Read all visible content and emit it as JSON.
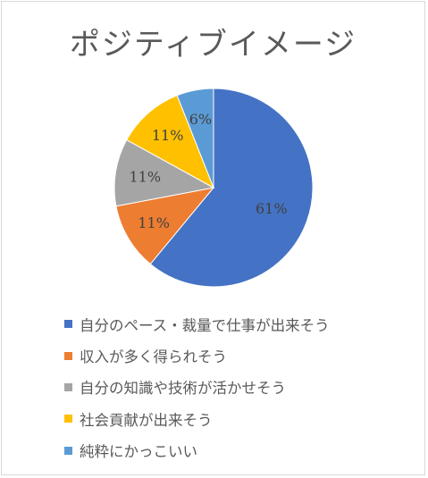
{
  "chart_data": {
    "type": "pie",
    "title": "ポジティブイメージ",
    "slices": [
      {
        "name": "自分のペース・裁量で仕事が出来そう",
        "value": 61,
        "label": "61%",
        "color": "#4472c4"
      },
      {
        "name": "収入が多く得られそう",
        "value": 11,
        "label": "11%",
        "color": "#ed7d31"
      },
      {
        "name": "自分の知識や技術が活かせそう",
        "value": 11,
        "label": "11%",
        "color": "#a5a5a5"
      },
      {
        "name": "社会貢献が出来そう",
        "value": 11,
        "label": "11%",
        "color": "#ffc000"
      },
      {
        "name": "純粋にかっこいい",
        "value": 6,
        "label": "6%",
        "color": "#5b9bd5"
      }
    ],
    "legend": "bottom"
  }
}
